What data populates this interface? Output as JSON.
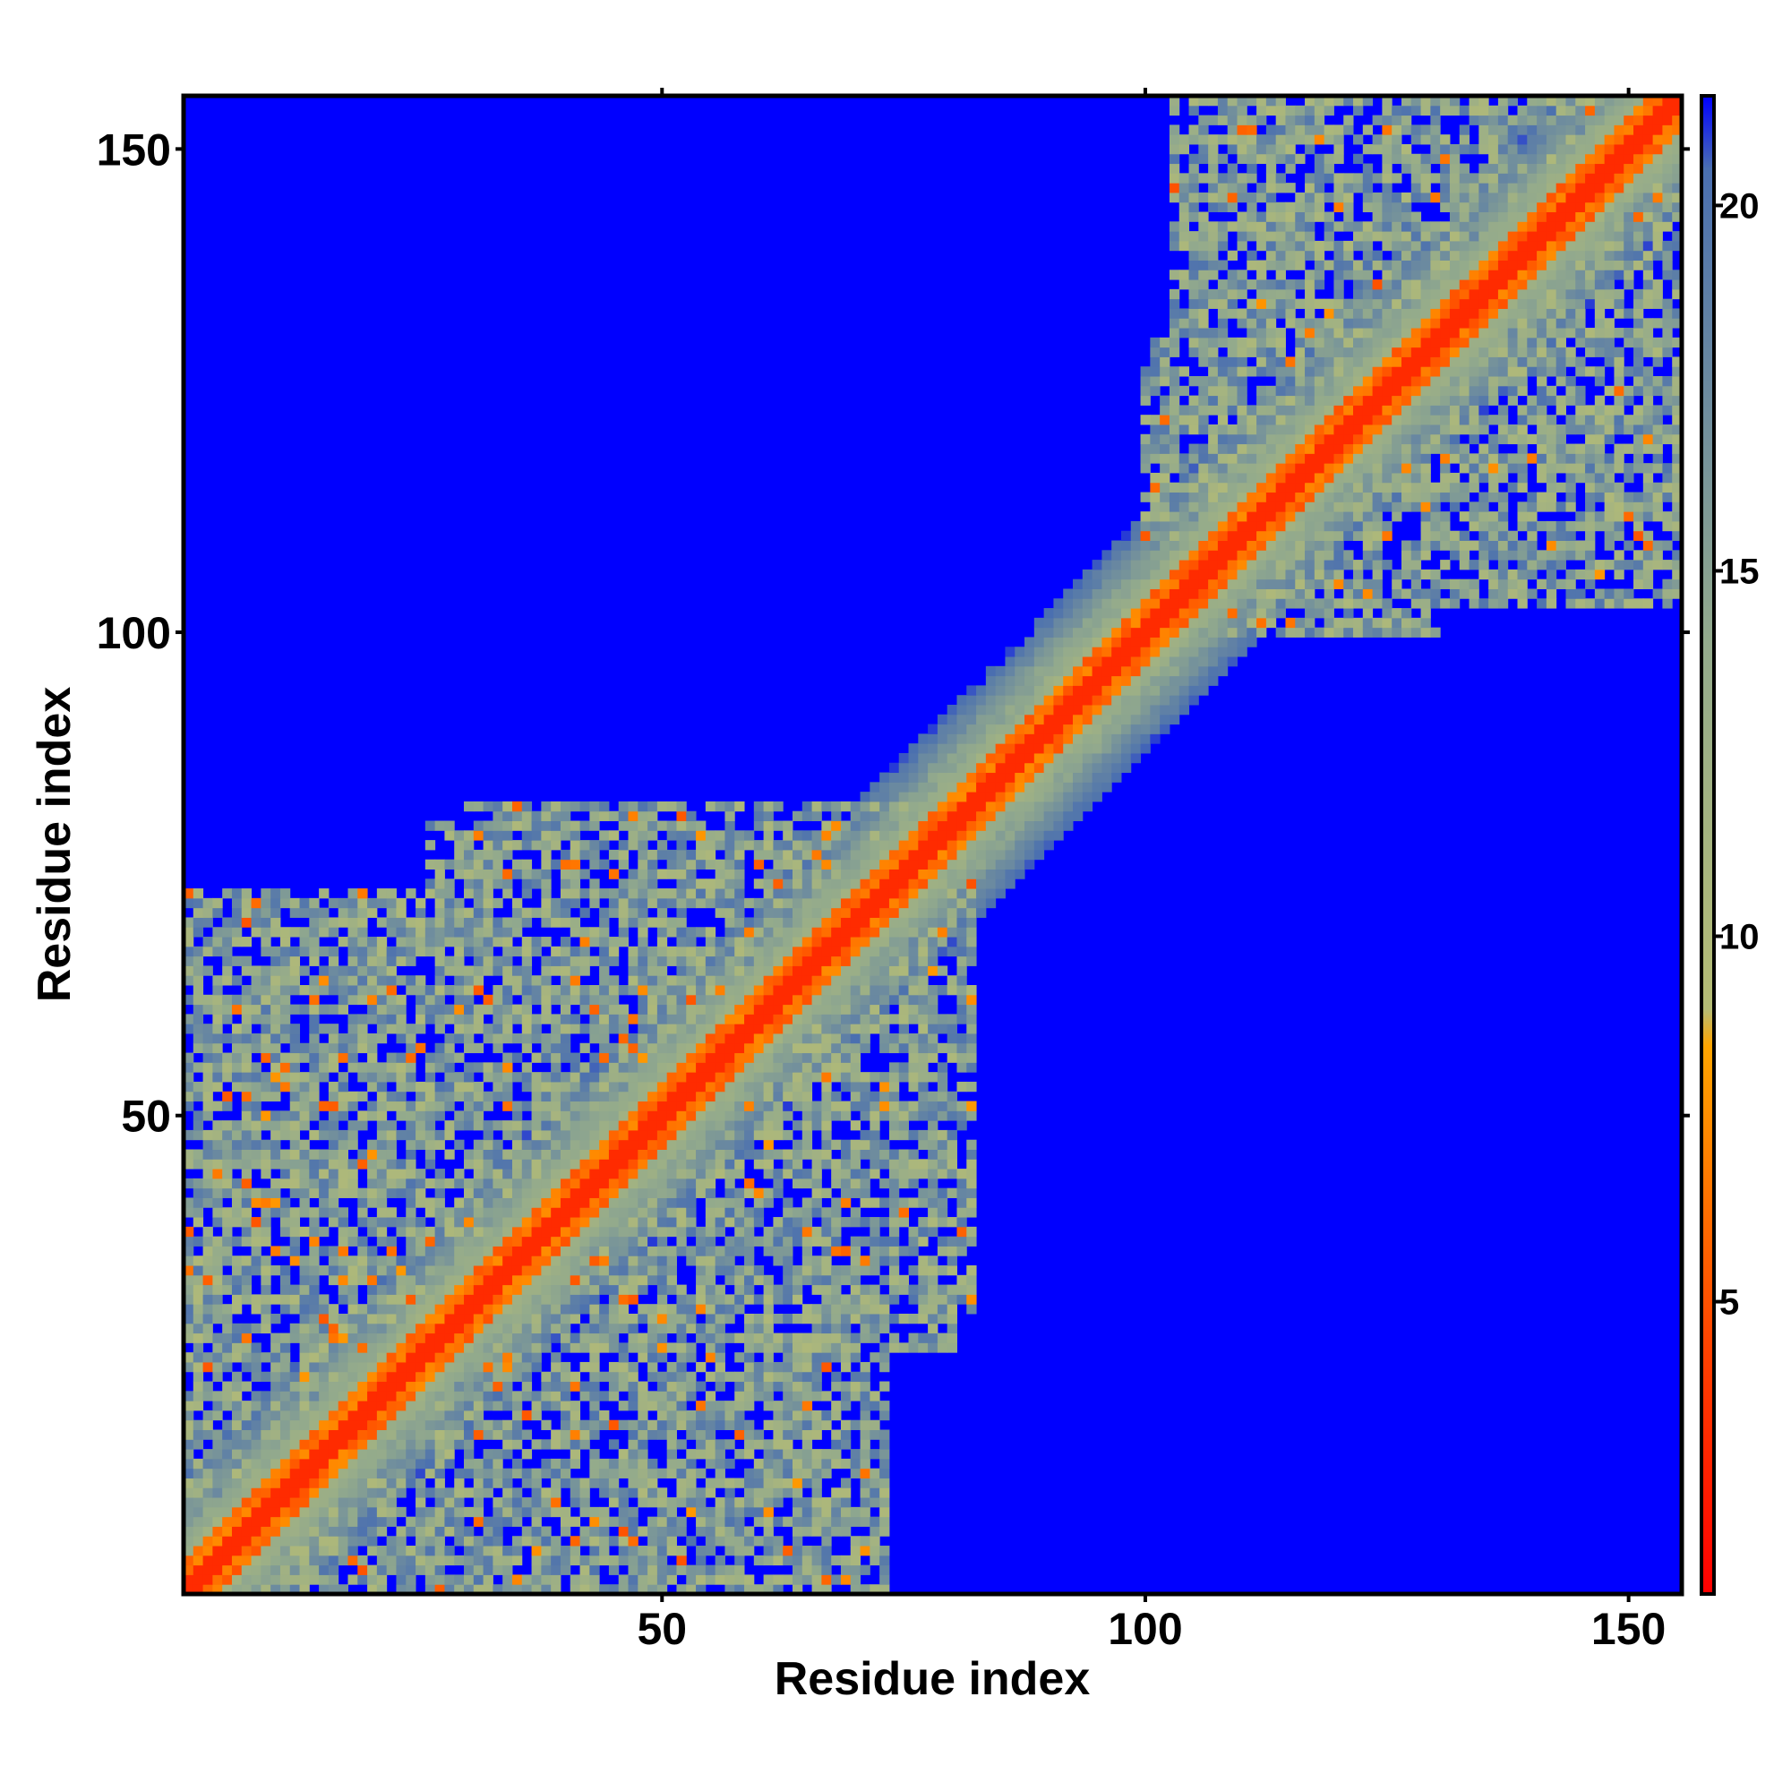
{
  "chart_data": {
    "type": "heatmap",
    "title": "",
    "xlabel": "Residue index",
    "ylabel": "Residue index",
    "xlim": [
      1,
      155
    ],
    "ylim": [
      1,
      155
    ],
    "n_residues": 155,
    "x_ticks": [
      50,
      100,
      150
    ],
    "y_ticks": [
      50,
      100,
      150
    ],
    "colorbar": {
      "range": [
        1,
        21.5
      ],
      "ticks": [
        5,
        10,
        15,
        20
      ],
      "stops": [
        {
          "value": 1,
          "color": "#ff0000"
        },
        {
          "value": 4.5,
          "color": "#ff4500"
        },
        {
          "value": 8.5,
          "color": "#ffa500"
        },
        {
          "value": 9,
          "color": "#b5bc75"
        },
        {
          "value": 14,
          "color": "#93aa8c"
        },
        {
          "value": 20.5,
          "color": "#4a6fb0"
        },
        {
          "value": 21.5,
          "color": "#0000ff"
        }
      ]
    },
    "background_color": "#0000ff",
    "cutoff": 21,
    "features": {
      "diagonal": {
        "band_width_residues": 6
      },
      "contact_regions": [
        {
          "x": [
            1,
            38
          ],
          "y": [
            1,
            22
          ]
        },
        {
          "x": [
            12,
            45
          ],
          "y": [
            22,
            58
          ]
        },
        {
          "x": [
            38,
            73
          ],
          "y": [
            1,
            28
          ]
        },
        {
          "x": [
            45,
            82
          ],
          "y": [
            30,
            82
          ]
        },
        {
          "x": [
            1,
            22
          ],
          "y": [
            46,
            72
          ]
        },
        {
          "x": [
            26,
            80
          ],
          "y": [
            42,
            80
          ]
        },
        {
          "x": [
            103,
            155
          ],
          "y": [
            118,
            155
          ]
        },
        {
          "x": [
            120,
            152
          ],
          "y": [
            108,
            150
          ]
        },
        {
          "x": [
            100,
            128
          ],
          "y": [
            105,
            130
          ]
        }
      ]
    }
  }
}
